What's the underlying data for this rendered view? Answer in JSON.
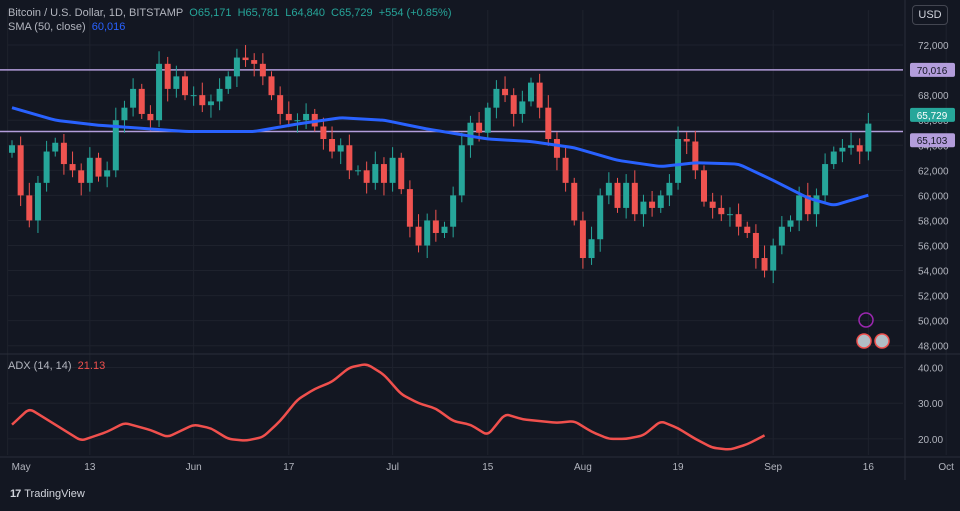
{
  "header": {
    "symbol": "Bitcoin / U.S. Dollar, 1D, BITSTAMP",
    "open": "O65,171",
    "high": "H65,781",
    "low": "L64,840",
    "close": "C65,729",
    "change": "+554 (+0.85%)",
    "sma_label": "SMA (50, close)",
    "sma_value": "60,016",
    "currency": "USD"
  },
  "adx": {
    "label": "ADX (14, 14)",
    "value": "21.13"
  },
  "brand": "TradingView",
  "colors": {
    "background": "#131722",
    "up": "#26a69a",
    "down": "#ef5350",
    "sma": "#2962ff",
    "adx": "#f0504d",
    "hline": "#b39ddb"
  },
  "chart_data": {
    "type": "candlestick",
    "y_ticks": [
      "72,000",
      "70,000",
      "68,000",
      "66,000",
      "64,000",
      "62,000",
      "60,000",
      "58,000",
      "56,000",
      "54,000",
      "52,000",
      "50,000",
      "48,000"
    ],
    "y_range": [
      47500,
      73200
    ],
    "x_ticks": [
      "May",
      "13",
      "Jun",
      "17",
      "Jul",
      "15",
      "Aug",
      "19",
      "Sep",
      "16",
      "Oct"
    ],
    "price_labels": {
      "last": "65,729",
      "line_upper": "70,016",
      "line_lower": "65,103"
    },
    "horizontal_lines": [
      70016,
      65103
    ],
    "close_anchors": [
      [
        0,
        64000
      ],
      [
        1,
        60000
      ],
      [
        2,
        58000
      ],
      [
        3,
        61000
      ],
      [
        4,
        63500
      ],
      [
        5,
        64200
      ],
      [
        6,
        62500
      ],
      [
        7,
        62000
      ],
      [
        8,
        61000
      ],
      [
        9,
        63000
      ],
      [
        10,
        61500
      ],
      [
        11,
        62000
      ],
      [
        12,
        66000
      ],
      [
        13,
        67000
      ],
      [
        14,
        68500
      ],
      [
        15,
        66500
      ],
      [
        16,
        66000
      ],
      [
        17,
        70500
      ],
      [
        18,
        68500
      ],
      [
        19,
        69500
      ],
      [
        20,
        68000
      ],
      [
        21,
        68000
      ],
      [
        22,
        67200
      ],
      [
        23,
        67500
      ],
      [
        24,
        68500
      ],
      [
        25,
        69500
      ],
      [
        26,
        71000
      ],
      [
        27,
        70800
      ],
      [
        28,
        70500
      ],
      [
        29,
        69500
      ],
      [
        30,
        68000
      ],
      [
        31,
        66500
      ],
      [
        32,
        66000
      ],
      [
        33,
        66000
      ],
      [
        34,
        66500
      ],
      [
        35,
        65500
      ],
      [
        36,
        64500
      ],
      [
        37,
        63500
      ],
      [
        38,
        64000
      ],
      [
        39,
        62000
      ],
      [
        40,
        62000
      ],
      [
        41,
        61000
      ],
      [
        42,
        62500
      ],
      [
        43,
        61000
      ],
      [
        44,
        63000
      ],
      [
        45,
        60500
      ],
      [
        46,
        57500
      ],
      [
        47,
        56000
      ],
      [
        48,
        58000
      ],
      [
        49,
        57000
      ],
      [
        50,
        57500
      ],
      [
        51,
        60000
      ],
      [
        52,
        64000
      ],
      [
        53,
        65800
      ],
      [
        54,
        65000
      ],
      [
        55,
        67000
      ],
      [
        56,
        68500
      ],
      [
        57,
        68000
      ],
      [
        58,
        66500
      ],
      [
        59,
        67500
      ],
      [
        60,
        69000
      ],
      [
        61,
        67000
      ],
      [
        62,
        64500
      ],
      [
        63,
        63000
      ],
      [
        64,
        61000
      ],
      [
        65,
        58000
      ],
      [
        66,
        55000
      ],
      [
        67,
        56500
      ],
      [
        68,
        60000
      ],
      [
        69,
        61000
      ],
      [
        70,
        59000
      ],
      [
        71,
        61000
      ],
      [
        72,
        58500
      ],
      [
        73,
        59500
      ],
      [
        74,
        59000
      ],
      [
        75,
        60000
      ],
      [
        76,
        61000
      ],
      [
        77,
        64500
      ],
      [
        78,
        64300
      ],
      [
        79,
        62000
      ],
      [
        80,
        59500
      ],
      [
        81,
        59000
      ],
      [
        82,
        58500
      ],
      [
        83,
        58500
      ],
      [
        84,
        57500
      ],
      [
        85,
        57000
      ],
      [
        86,
        55000
      ],
      [
        87,
        54000
      ],
      [
        88,
        56000
      ],
      [
        89,
        57500
      ],
      [
        90,
        58000
      ],
      [
        91,
        60000
      ],
      [
        92,
        58500
      ],
      [
        93,
        60000
      ],
      [
        94,
        62500
      ],
      [
        95,
        63500
      ],
      [
        96,
        63800
      ],
      [
        97,
        64000
      ],
      [
        98,
        63500
      ],
      [
        99,
        65729
      ]
    ],
    "sma": [
      [
        0,
        67000
      ],
      [
        5,
        66000
      ],
      [
        10,
        65600
      ],
      [
        20,
        65100
      ],
      [
        28,
        65100
      ],
      [
        33,
        65700
      ],
      [
        38,
        66200
      ],
      [
        43,
        66000
      ],
      [
        48,
        65300
      ],
      [
        55,
        64500
      ],
      [
        60,
        64300
      ],
      [
        65,
        63800
      ],
      [
        70,
        62800
      ],
      [
        75,
        62300
      ],
      [
        79,
        62600
      ],
      [
        84,
        62500
      ],
      [
        88,
        61200
      ],
      [
        92,
        59800
      ],
      [
        95,
        59200
      ],
      [
        99,
        60016
      ]
    ],
    "adx_y_ticks": [
      "40.00",
      "30.00",
      "20.00"
    ],
    "adx_range": [
      15.5,
      43.5
    ],
    "adx": [
      [
        0,
        24
      ],
      [
        2,
        28.5
      ],
      [
        5,
        24
      ],
      [
        8,
        19.5
      ],
      [
        11,
        22
      ],
      [
        13,
        24.5
      ],
      [
        16,
        22.5
      ],
      [
        18,
        20.5
      ],
      [
        21,
        24
      ],
      [
        23,
        23
      ],
      [
        25,
        20
      ],
      [
        27,
        19.5
      ],
      [
        29,
        20.5
      ],
      [
        31,
        25
      ],
      [
        33,
        31
      ],
      [
        35,
        34
      ],
      [
        37,
        36
      ],
      [
        39,
        40
      ],
      [
        41,
        41
      ],
      [
        43,
        38
      ],
      [
        45,
        32.5
      ],
      [
        47,
        30
      ],
      [
        49,
        28.5
      ],
      [
        51,
        25
      ],
      [
        53,
        24
      ],
      [
        55,
        21
      ],
      [
        57,
        27
      ],
      [
        59,
        25.5
      ],
      [
        61,
        25
      ],
      [
        63,
        24.5
      ],
      [
        65,
        25
      ],
      [
        67,
        22
      ],
      [
        69,
        20
      ],
      [
        71,
        20
      ],
      [
        73,
        21
      ],
      [
        75,
        25
      ],
      [
        77,
        23
      ],
      [
        79,
        20
      ],
      [
        81,
        17.5
      ],
      [
        83,
        17
      ],
      [
        85,
        18.5
      ],
      [
        87,
        21
      ]
    ]
  }
}
